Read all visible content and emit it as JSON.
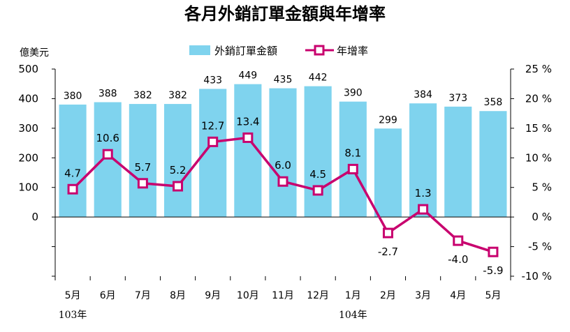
{
  "chart_data": {
    "type": "bar+line",
    "title": "各月外銷訂單金額與年增率",
    "left_unit": "億美元",
    "categories": [
      "5月",
      "6月",
      "7月",
      "8月",
      "9月",
      "10月",
      "11月",
      "12月",
      "1月",
      "2月",
      "3月",
      "4月",
      "5月"
    ],
    "year_labels": [
      {
        "label": "103年",
        "category_index": 0
      },
      {
        "label": "104年",
        "category_index": 8
      }
    ],
    "series": [
      {
        "name": "外銷訂單金額",
        "type": "bar",
        "axis": "left",
        "color": "#7fd3ee",
        "values": [
          380,
          388,
          382,
          382,
          433,
          449,
          435,
          442,
          390,
          299,
          384,
          373,
          358
        ]
      },
      {
        "name": "年增率",
        "type": "line",
        "axis": "right",
        "color": "#c8006e",
        "values": [
          4.7,
          10.6,
          5.7,
          5.2,
          12.7,
          13.4,
          6.0,
          4.5,
          8.1,
          -2.7,
          1.3,
          -4.0,
          -5.9
        ]
      }
    ],
    "left_axis": {
      "min": -200,
      "max": 500,
      "ticks": [
        0,
        100,
        200,
        300,
        400,
        500
      ],
      "tick_labels": [
        "0",
        "100",
        "200",
        "300",
        "400",
        "500"
      ]
    },
    "right_axis": {
      "min": -10,
      "max": 25,
      "ticks": [
        -10,
        -5,
        0,
        5,
        10,
        15,
        20,
        25
      ],
      "tick_labels": [
        "-10 %",
        "-5 %",
        "0 %",
        "5 %",
        "10 %",
        "15 %",
        "20 %",
        "25 %"
      ]
    },
    "bar_labels": [
      "380",
      "388",
      "382",
      "382",
      "433",
      "449",
      "435",
      "442",
      "390",
      "299",
      "384",
      "373",
      "358"
    ],
    "rate_labels": [
      "4.7",
      "10.6",
      "5.7",
      "5.2",
      "12.7",
      "13.4",
      "6.0",
      "4.5",
      "8.1",
      "-2.7",
      "1.3",
      "-4.0",
      "-5.9"
    ],
    "legend_position": "top-center",
    "grid": false
  }
}
